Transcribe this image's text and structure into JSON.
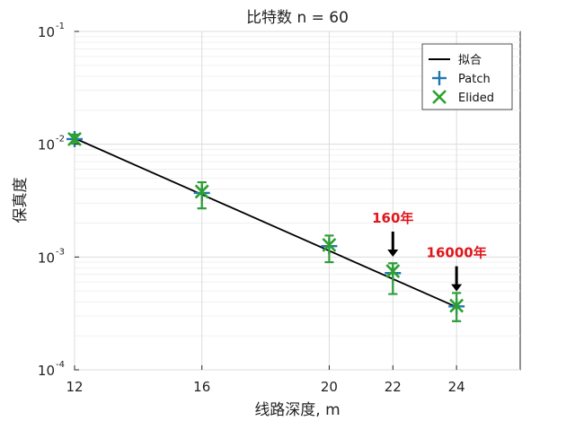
{
  "chart_data": {
    "type": "scatter",
    "title": "比特数 n = 60",
    "xlabel": "线路深度, m",
    "ylabel": "保真度",
    "x_ticks": [
      12,
      16,
      20,
      22,
      24
    ],
    "xlim": [
      12,
      26
    ],
    "yscale": "log",
    "ylim": [
      0.0001,
      0.1
    ],
    "y_tick_bases": [
      "10",
      "10",
      "10",
      "10"
    ],
    "y_tick_exponents": [
      "-4",
      "-3",
      "-2",
      "-1"
    ],
    "grid": true,
    "legend_position": "top-right",
    "series": [
      {
        "name": "拟合",
        "kind": "line",
        "color": "#000000",
        "x": [
          12,
          24
        ],
        "y": [
          0.0113,
          0.00036
        ]
      },
      {
        "name": "Patch",
        "kind": "errorbar",
        "marker": "plus",
        "color": "#1f77b4",
        "x": [
          12,
          16,
          20,
          22,
          24
        ],
        "y": [
          0.0111,
          0.0037,
          0.00125,
          0.00072,
          0.000365
        ],
        "y_err_low": [
          0.0102,
          0.0027,
          0.0009,
          0.00047,
          0.00027
        ],
        "y_err_high": [
          0.0121,
          0.0046,
          0.00155,
          0.00088,
          0.00048
        ]
      },
      {
        "name": "Elided",
        "kind": "errorbar",
        "marker": "x",
        "color": "#2ca02c",
        "x": [
          12,
          16,
          20,
          22,
          24
        ],
        "y": [
          0.0111,
          0.0038,
          0.00128,
          0.00075,
          0.00037
        ],
        "y_err_low": [
          0.0101,
          0.0027,
          0.0009,
          0.00047,
          0.00027
        ],
        "y_err_high": [
          0.0122,
          0.0046,
          0.00155,
          0.00088,
          0.00048
        ]
      }
    ],
    "annotations": [
      {
        "text": "160年",
        "x": 22,
        "y": 0.00075,
        "color": "#e0161c"
      },
      {
        "text": "16000年",
        "x": 24,
        "y": 0.00037,
        "color": "#e0161c"
      }
    ]
  }
}
